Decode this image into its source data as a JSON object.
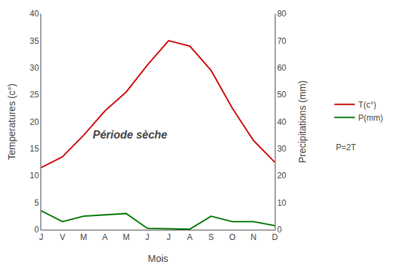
{
  "chart_data": {
    "type": "line",
    "categories": [
      "J",
      "V",
      "M",
      "A",
      "M",
      "J",
      "J",
      "A",
      "S",
      "O",
      "N",
      "D"
    ],
    "xlabel": "Mois",
    "ylabel": "Temperatures (c°)",
    "y2label": "Precipitations (mm)",
    "annotations": [
      "Période sèche",
      "P=2T"
    ],
    "series": [
      {
        "name": "T(c°)",
        "color": "#cc0000",
        "values": [
          11.5,
          13.5,
          17.5,
          22.0,
          25.5,
          30.5,
          35.0,
          34.0,
          29.5,
          22.5,
          16.5,
          12.5
        ]
      },
      {
        "name": "P(mm)",
        "color": "#007700",
        "axis": "y2",
        "values": [
          7.0,
          3.0,
          5.0,
          5.5,
          6.0,
          0.5,
          0.3,
          0.2,
          5.0,
          3.0,
          3.0,
          1.5
        ]
      }
    ],
    "ylim": [
      0,
      40
    ],
    "yticks": [
      0,
      5,
      10,
      15,
      20,
      25,
      30,
      35,
      40
    ],
    "y2lim": [
      0,
      80
    ],
    "y2ticks": [
      0,
      10,
      20,
      30,
      40,
      50,
      60,
      70,
      80
    ],
    "grid": false,
    "legend": "right"
  }
}
